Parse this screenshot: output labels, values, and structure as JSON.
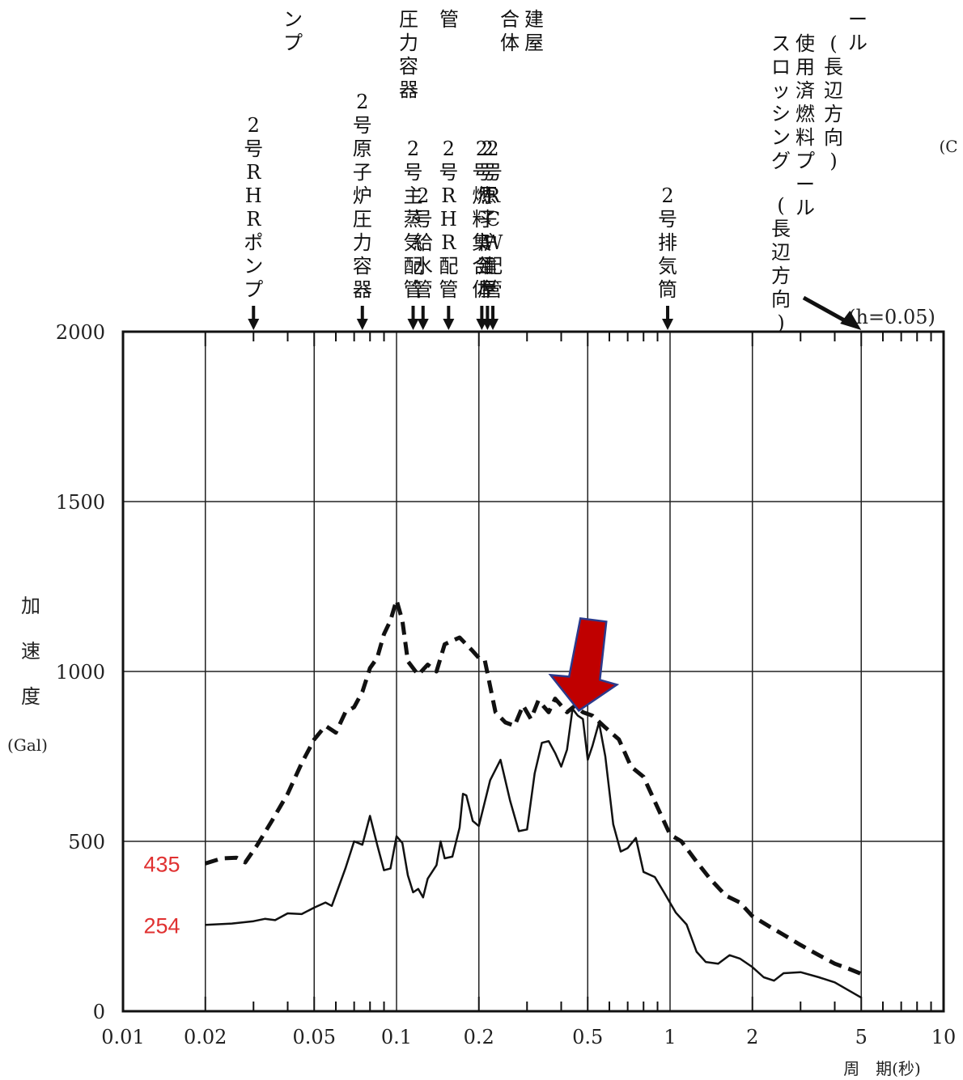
{
  "chart_data": {
    "type": "line",
    "x_scale": "log",
    "xlim": [
      0.01,
      10
    ],
    "ylim": [
      0,
      2000
    ],
    "grid": true,
    "xlabel": "周　期(秒)",
    "ylabel": "加速度",
    "ylabel_unit": "(Gal)",
    "x_ticks": [
      {
        "value": 0.01,
        "label": "0.01"
      },
      {
        "value": 0.02,
        "label": "0.02"
      },
      {
        "value": 0.05,
        "label": "0.05"
      },
      {
        "value": 0.1,
        "label": "0.1"
      },
      {
        "value": 0.2,
        "label": "0.2"
      },
      {
        "value": 0.5,
        "label": "0.5"
      },
      {
        "value": 1,
        "label": "1"
      },
      {
        "value": 2,
        "label": "2"
      },
      {
        "value": 5,
        "label": "5"
      },
      {
        "value": 10,
        "label": "10"
      }
    ],
    "y_ticks": [
      {
        "value": 0,
        "label": "0"
      },
      {
        "value": 500,
        "label": "500"
      },
      {
        "value": 1000,
        "label": "1000"
      },
      {
        "value": 1500,
        "label": "1500"
      },
      {
        "value": 2000,
        "label": "2000"
      }
    ],
    "series": [
      {
        "style": "dashed",
        "color": "#111111",
        "points": [
          [
            0.02,
            435
          ],
          [
            0.023,
            450
          ],
          [
            0.026,
            452
          ],
          [
            0.028,
            438
          ],
          [
            0.031,
            490
          ],
          [
            0.035,
            560
          ],
          [
            0.04,
            640
          ],
          [
            0.045,
            730
          ],
          [
            0.05,
            800
          ],
          [
            0.055,
            840
          ],
          [
            0.06,
            820
          ],
          [
            0.065,
            880
          ],
          [
            0.07,
            895
          ],
          [
            0.075,
            940
          ],
          [
            0.08,
            1010
          ],
          [
            0.085,
            1040
          ],
          [
            0.09,
            1110
          ],
          [
            0.095,
            1150
          ],
          [
            0.1,
            1210
          ],
          [
            0.105,
            1150
          ],
          [
            0.11,
            1030
          ],
          [
            0.12,
            990
          ],
          [
            0.13,
            1020
          ],
          [
            0.14,
            1000
          ],
          [
            0.15,
            1080
          ],
          [
            0.17,
            1100
          ],
          [
            0.19,
            1060
          ],
          [
            0.2,
            1040
          ],
          [
            0.21,
            1035
          ],
          [
            0.23,
            880
          ],
          [
            0.25,
            850
          ],
          [
            0.27,
            840
          ],
          [
            0.29,
            900
          ],
          [
            0.31,
            860
          ],
          [
            0.33,
            915
          ],
          [
            0.36,
            880
          ],
          [
            0.38,
            920
          ],
          [
            0.42,
            880
          ],
          [
            0.45,
            900
          ],
          [
            0.48,
            880
          ],
          [
            0.52,
            870
          ],
          [
            0.58,
            835
          ],
          [
            0.65,
            800
          ],
          [
            0.72,
            720
          ],
          [
            0.8,
            690
          ],
          [
            0.9,
            600
          ],
          [
            1.0,
            520
          ],
          [
            1.1,
            500
          ],
          [
            1.25,
            440
          ],
          [
            1.4,
            390
          ],
          [
            1.6,
            340
          ],
          [
            1.8,
            320
          ],
          [
            2.0,
            280
          ],
          [
            2.3,
            250
          ],
          [
            2.6,
            225
          ],
          [
            3.0,
            195
          ],
          [
            3.5,
            165
          ],
          [
            4.0,
            140
          ],
          [
            4.5,
            125
          ],
          [
            5.0,
            110
          ]
        ]
      },
      {
        "style": "solid",
        "color": "#111111",
        "points": [
          [
            0.02,
            254
          ],
          [
            0.025,
            258
          ],
          [
            0.03,
            265
          ],
          [
            0.033,
            272
          ],
          [
            0.036,
            268
          ],
          [
            0.04,
            288
          ],
          [
            0.045,
            286
          ],
          [
            0.05,
            305
          ],
          [
            0.055,
            320
          ],
          [
            0.058,
            310
          ],
          [
            0.065,
            420
          ],
          [
            0.07,
            500
          ],
          [
            0.075,
            490
          ],
          [
            0.08,
            575
          ],
          [
            0.085,
            490
          ],
          [
            0.09,
            415
          ],
          [
            0.095,
            420
          ],
          [
            0.1,
            515
          ],
          [
            0.105,
            495
          ],
          [
            0.11,
            400
          ],
          [
            0.115,
            350
          ],
          [
            0.12,
            360
          ],
          [
            0.125,
            335
          ],
          [
            0.13,
            390
          ],
          [
            0.14,
            430
          ],
          [
            0.145,
            500
          ],
          [
            0.15,
            450
          ],
          [
            0.16,
            455
          ],
          [
            0.17,
            540
          ],
          [
            0.175,
            640
          ],
          [
            0.18,
            635
          ],
          [
            0.19,
            560
          ],
          [
            0.2,
            545
          ],
          [
            0.22,
            680
          ],
          [
            0.24,
            740
          ],
          [
            0.26,
            620
          ],
          [
            0.28,
            530
          ],
          [
            0.3,
            535
          ],
          [
            0.32,
            700
          ],
          [
            0.34,
            790
          ],
          [
            0.36,
            795
          ],
          [
            0.38,
            760
          ],
          [
            0.4,
            720
          ],
          [
            0.42,
            770
          ],
          [
            0.44,
            890
          ],
          [
            0.46,
            870
          ],
          [
            0.48,
            860
          ],
          [
            0.5,
            740
          ],
          [
            0.52,
            780
          ],
          [
            0.55,
            850
          ],
          [
            0.58,
            750
          ],
          [
            0.62,
            550
          ],
          [
            0.66,
            470
          ],
          [
            0.7,
            480
          ],
          [
            0.75,
            510
          ],
          [
            0.8,
            410
          ],
          [
            0.88,
            395
          ],
          [
            0.95,
            350
          ],
          [
            1.05,
            290
          ],
          [
            1.15,
            255
          ],
          [
            1.25,
            175
          ],
          [
            1.35,
            145
          ],
          [
            1.5,
            140
          ],
          [
            1.65,
            165
          ],
          [
            1.8,
            155
          ],
          [
            2.0,
            130
          ],
          [
            2.2,
            100
          ],
          [
            2.4,
            90
          ],
          [
            2.6,
            112
          ],
          [
            3.0,
            115
          ],
          [
            3.5,
            100
          ],
          [
            4.0,
            85
          ],
          [
            5.0,
            40
          ]
        ]
      }
    ],
    "annotations": {
      "value_labels": [
        {
          "text": "435",
          "y": 435,
          "color": "#e03131"
        },
        {
          "text": "254",
          "y": 254,
          "color": "#e03131"
        }
      ],
      "damping": "(h=0.05)",
      "highlight_arrow_period": 0.48,
      "equipment": [
        {
          "period": 0.03,
          "label": "2号RHRポンプ"
        },
        {
          "period": 0.075,
          "label": "2号原子炉圧力容器"
        },
        {
          "period": 0.115,
          "label": "2号主蒸気配管"
        },
        {
          "period": 0.125,
          "label": "2号給水管"
        },
        {
          "period": 0.155,
          "label": "2号RHR配管"
        },
        {
          "period": 0.205,
          "label": "2号燃料集合体"
        },
        {
          "period": 0.215,
          "label": "2号原子炉建屋"
        },
        {
          "period": 0.225,
          "label": "2号RCW配管"
        },
        {
          "period": 0.98,
          "label": "2号排気筒"
        }
      ],
      "top_fragments": [
        "ンプ",
        "圧力容器",
        "管",
        "合体",
        "建屋",
        "ール",
        "(長辺方向)",
        "使用済燃料プール",
        "スロッシング",
        "(長辺方向)",
        "(C"
      ]
    }
  }
}
